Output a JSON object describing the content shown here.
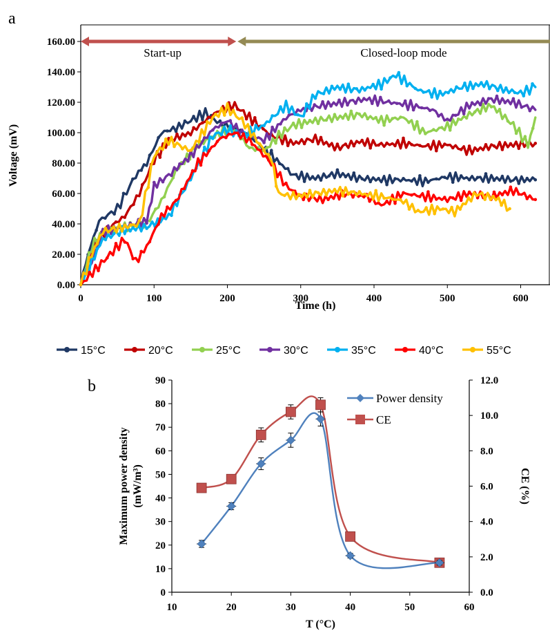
{
  "chart_data": [
    {
      "panel": "a",
      "type": "line",
      "xlabel": "Time (h)",
      "ylabel": "Voltage  (mV)",
      "xlim": [
        0,
        640
      ],
      "ylim": [
        0,
        170
      ],
      "xticks": [
        "0",
        "100",
        "200",
        "300",
        "400",
        "500",
        "600"
      ],
      "yticks": [
        "0.00",
        "20.00",
        "40.00",
        "60.00",
        "80.00",
        "100.00",
        "120.00",
        "140.00",
        "160.00"
      ],
      "annotations": [
        {
          "text": "Start-up",
          "x_from": 0,
          "x_to": 212,
          "direction": "both",
          "color": "#c0504d"
        },
        {
          "text": "Closed-loop mode",
          "x_from": 212,
          "x_to": 640,
          "direction": "left",
          "color": "#948a54"
        }
      ],
      "legend_position": "bottom",
      "grid": false,
      "series": [
        {
          "name": "15°C",
          "color": "#1f3864",
          "x": [
            0,
            10,
            25,
            50,
            75,
            90,
            110,
            130,
            150,
            170,
            190,
            210,
            230,
            260,
            290,
            320,
            350,
            380,
            410,
            440,
            470,
            500,
            530,
            560,
            590,
            620
          ],
          "y": [
            0,
            20,
            42,
            50,
            72,
            80,
            100,
            103,
            108,
            113,
            106,
            103,
            98,
            85,
            72,
            70,
            73,
            70,
            69,
            69,
            68,
            71,
            70,
            70,
            69,
            69
          ]
        },
        {
          "name": "20°C",
          "color": "#c00000",
          "x": [
            0,
            20,
            40,
            60,
            80,
            100,
            120,
            150,
            170,
            190,
            210,
            230,
            260,
            290,
            320,
            350,
            380,
            410,
            440,
            470,
            500,
            530,
            560,
            590,
            620
          ],
          "y": [
            0,
            28,
            38,
            45,
            60,
            82,
            95,
            100,
            108,
            115,
            118,
            110,
            98,
            93,
            96,
            90,
            94,
            92,
            93,
            91,
            92,
            88,
            91,
            92,
            93
          ]
        },
        {
          "name": "25°C",
          "color": "#92d050",
          "x": [
            0,
            15,
            30,
            60,
            90,
            110,
            130,
            160,
            190,
            210,
            230,
            250,
            270,
            290,
            320,
            350,
            380,
            410,
            440,
            470,
            500,
            530,
            560,
            590,
            610,
            620
          ],
          "y": [
            0,
            25,
            35,
            38,
            40,
            55,
            75,
            92,
            100,
            102,
            90,
            88,
            98,
            105,
            108,
            110,
            112,
            108,
            110,
            100,
            104,
            112,
            118,
            105,
            92,
            110
          ]
        },
        {
          "name": "30°C",
          "color": "#7030a0",
          "x": [
            0,
            15,
            30,
            60,
            90,
            100,
            120,
            150,
            180,
            200,
            220,
            250,
            280,
            300,
            330,
            360,
            390,
            420,
            450,
            480,
            500,
            530,
            560,
            590,
            620
          ],
          "y": [
            0,
            15,
            35,
            38,
            42,
            65,
            72,
            85,
            102,
            108,
            100,
            95,
            110,
            115,
            118,
            120,
            122,
            120,
            118,
            115,
            108,
            118,
            122,
            120,
            115
          ]
        },
        {
          "name": "35°C",
          "color": "#00b0f0",
          "x": [
            0,
            15,
            30,
            60,
            90,
            120,
            150,
            180,
            200,
            220,
            250,
            280,
            300,
            320,
            350,
            380,
            410,
            430,
            460,
            490,
            520,
            550,
            580,
            600,
            620
          ],
          "y": [
            0,
            15,
            30,
            36,
            38,
            45,
            70,
            98,
            102,
            98,
            105,
            118,
            110,
            125,
            130,
            128,
            132,
            138,
            128,
            125,
            130,
            132,
            128,
            126,
            130
          ]
        },
        {
          "name": "40°C",
          "color": "#ff0000",
          "x": [
            0,
            20,
            40,
            60,
            75,
            90,
            110,
            130,
            160,
            190,
            210,
            230,
            260,
            280,
            300,
            330,
            360,
            390,
            410,
            440,
            470,
            500,
            530,
            560,
            590,
            620
          ],
          "y": [
            0,
            10,
            20,
            30,
            15,
            25,
            45,
            55,
            80,
            96,
            100,
            95,
            80,
            65,
            58,
            56,
            60,
            58,
            52,
            60,
            58,
            56,
            60,
            58,
            62,
            56
          ]
        },
        {
          "name": "55°C",
          "color": "#ffc000",
          "x": [
            0,
            15,
            30,
            60,
            80,
            100,
            120,
            150,
            180,
            200,
            220,
            240,
            260,
            270,
            290,
            320,
            350,
            380,
            410,
            440,
            460,
            490,
            510,
            540,
            570,
            585
          ],
          "y": [
            0,
            20,
            35,
            38,
            40,
            85,
            95,
            88,
            110,
            116,
            108,
            95,
            82,
            60,
            58,
            60,
            62,
            60,
            58,
            55,
            48,
            50,
            48,
            60,
            56,
            50
          ]
        }
      ]
    },
    {
      "panel": "b",
      "type": "line",
      "xlabel": "T (°C)",
      "ylabel": "Maximum power density",
      "ylabel_unit": "(mW/m³)",
      "y2label": "CE (%)",
      "xlim": [
        10,
        60
      ],
      "ylim": [
        0,
        90
      ],
      "y2lim": [
        0,
        12
      ],
      "xticks": [
        "10",
        "20",
        "30",
        "40",
        "50",
        "60"
      ],
      "yticks": [
        "0",
        "10",
        "20",
        "30",
        "40",
        "50",
        "60",
        "70",
        "80",
        "90"
      ],
      "y2ticks": [
        "0.0",
        "2.0",
        "4.0",
        "6.0",
        "8.0",
        "10.0",
        "12.0"
      ],
      "legend_position": "top-right",
      "series": [
        {
          "name": "Power density",
          "axis": "left",
          "color": "#4f81bd",
          "marker": "diamond",
          "x": [
            15,
            20,
            25,
            30,
            35,
            40,
            55
          ],
          "y": [
            20.5,
            36.5,
            54.5,
            64.5,
            73.5,
            15.5,
            12.5
          ],
          "err": [
            1.5,
            1.5,
            2.5,
            3,
            3,
            1,
            1
          ]
        },
        {
          "name": "CE",
          "axis": "right",
          "color": "#c0504d",
          "marker": "square",
          "x": [
            15,
            20,
            25,
            30,
            35,
            40,
            55
          ],
          "y": [
            5.9,
            6.4,
            8.9,
            10.2,
            10.6,
            3.15,
            1.67
          ],
          "err": [
            0.2,
            0.2,
            0.4,
            0.4,
            0.4,
            0.1,
            0.1
          ]
        }
      ]
    }
  ]
}
